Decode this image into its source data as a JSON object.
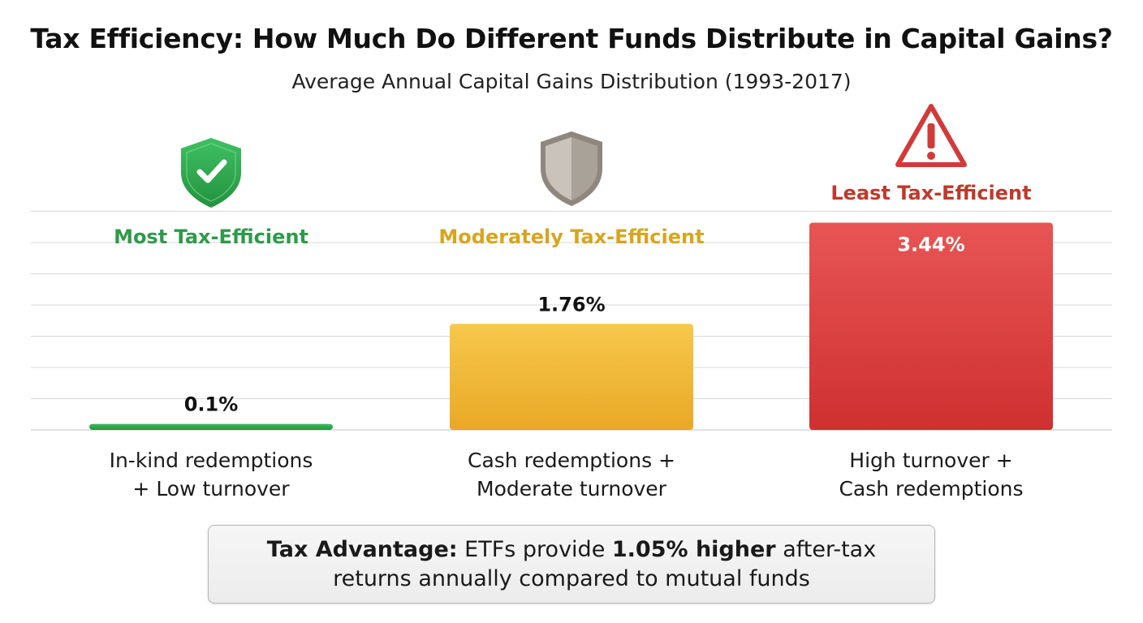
{
  "chart_data": {
    "type": "bar",
    "title": "Tax Efficiency: How Much Do Different Funds Distribute in Capital Gains?",
    "subtitle": "Average Annual Capital Gains Distribution (1993-2017)",
    "categories": [
      [
        "In-kind redemptions",
        "+ Low turnover"
      ],
      [
        "Cash redemptions +",
        "Moderate turnover"
      ],
      [
        "High turnover +",
        "Cash redemptions"
      ]
    ],
    "values": [
      0.1,
      1.76,
      3.44
    ],
    "value_labels": [
      "0.1%",
      "1.76%",
      "3.44%"
    ],
    "efficiency_labels": [
      "Most Tax-Efficient",
      "Moderately Tax-Efficient",
      "Least Tax-Efficient"
    ],
    "efficiency_icons": [
      "shield-check-icon",
      "shield-neutral-icon",
      "warning-triangle-icon"
    ],
    "ylim": [
      0,
      3.5
    ],
    "grid": true,
    "colors": {
      "bars": [
        "#2ea84f",
        "#f0b93a",
        "#dc3e3e"
      ],
      "labels": [
        "#2e9a4a",
        "#d9a51e",
        "#c0392b"
      ],
      "grid": "#d8d8d8"
    }
  },
  "note": {
    "lead": "Tax Advantage:",
    "text1": " ETFs provide ",
    "emphasis": "1.05% higher",
    "text2": " after-tax returns annually compared to mutual funds"
  }
}
